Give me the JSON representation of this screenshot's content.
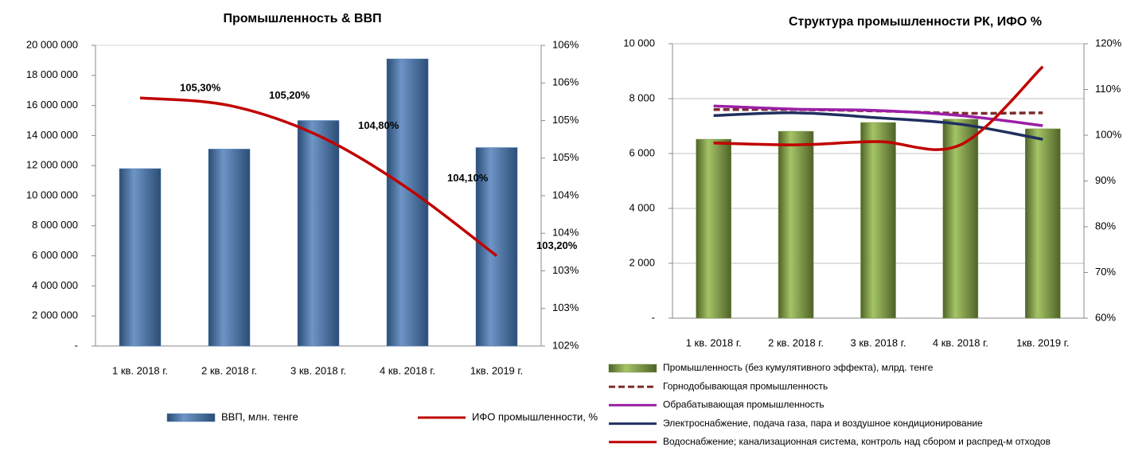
{
  "chart_data": [
    {
      "type": "combo",
      "title": "Промышленность & ВВП",
      "categories": [
        "1 кв. 2018 г.",
        "2 кв. 2018 г.",
        "3 кв. 2018 г.",
        "4 кв. 2018 г.",
        "1кв. 2019 г."
      ],
      "ylim": [
        0,
        20000000
      ],
      "yticks": [
        {
          "value": 0,
          "label": "-"
        },
        {
          "value": 2000000,
          "label": "2 000 000"
        },
        {
          "value": 4000000,
          "label": "4 000 000"
        },
        {
          "value": 6000000,
          "label": "6 000 000"
        },
        {
          "value": 8000000,
          "label": "8 000 000"
        },
        {
          "value": 10000000,
          "label": "10 000 000"
        },
        {
          "value": 12000000,
          "label": "12 000 000"
        },
        {
          "value": 14000000,
          "label": "14 000 000"
        },
        {
          "value": 16000000,
          "label": "16 000 000"
        },
        {
          "value": 18000000,
          "label": "18 000 000"
        },
        {
          "value": 20000000,
          "label": "20 000 000"
        }
      ],
      "y2lim": [
        102,
        106
      ],
      "y2ticks": [
        {
          "value": 102,
          "label": "102%"
        },
        {
          "value": 102.5,
          "label": "103%"
        },
        {
          "value": 103,
          "label": "103%"
        },
        {
          "value": 103.5,
          "label": "104%"
        },
        {
          "value": 104,
          "label": "104%"
        },
        {
          "value": 104.5,
          "label": "105%"
        },
        {
          "value": 105,
          "label": "105%"
        },
        {
          "value": 105.5,
          "label": "106%"
        },
        {
          "value": 106,
          "label": "106%"
        }
      ],
      "grid": false,
      "series": [
        {
          "name": "ВВП, млн. тенге",
          "type": "bar",
          "color": "#4f81bd",
          "values": [
            11800000,
            13100000,
            15000000,
            19100000,
            13200000
          ]
        },
        {
          "name": "ИФО промышленности, %",
          "type": "line",
          "axis": "y2",
          "color": "#c00000",
          "values": [
            105.3,
            105.2,
            104.8,
            104.1,
            103.2
          ],
          "value_labels": [
            "105,30%",
            "105,20%",
            "104,80%",
            "104,10%",
            "103,20%"
          ]
        }
      ]
    },
    {
      "type": "combo",
      "title": "Структура промышленности РК, ИФО %",
      "categories": [
        "1 кв. 2018 г.",
        "2 кв. 2018 г.",
        "3 кв. 2018 г.",
        "4 кв. 2018 г.",
        "1кв. 2019 г."
      ],
      "ylim": [
        0,
        10000
      ],
      "yticks": [
        {
          "value": 0,
          "label": "-"
        },
        {
          "value": 2000,
          "label": "2 000"
        },
        {
          "value": 4000,
          "label": "4 000"
        },
        {
          "value": 6000,
          "label": "6 000"
        },
        {
          "value": 8000,
          "label": "8 000"
        },
        {
          "value": 10000,
          "label": "10 000"
        }
      ],
      "y2lim": [
        60,
        120
      ],
      "y2ticks": [
        {
          "value": 60,
          "label": "60%"
        },
        {
          "value": 70,
          "label": "70%"
        },
        {
          "value": 80,
          "label": "80%"
        },
        {
          "value": 90,
          "label": "90%"
        },
        {
          "value": 100,
          "label": "100%"
        },
        {
          "value": 110,
          "label": "110%"
        },
        {
          "value": 120,
          "label": "120%"
        }
      ],
      "grid": true,
      "series": [
        {
          "name": "Промышленность (без кумулятивного эффекта), млрд. тенге",
          "type": "bar",
          "color": "#77933c",
          "values": [
            6520,
            6810,
            7130,
            7250,
            6900
          ]
        },
        {
          "name": "Горнодобывающая промышленность",
          "type": "line",
          "dashed": true,
          "axis": "y2",
          "color": "#7b2c2c",
          "values": [
            105.6,
            105.6,
            105.3,
            104.8,
            104.9
          ]
        },
        {
          "name": "Обрабатывающая промышленность",
          "type": "line",
          "axis": "y2",
          "color": "#9b1fa6",
          "values": [
            106.4,
            105.7,
            105.4,
            104.3,
            102.1
          ]
        },
        {
          "name": "Электроснабжение, подача газа, пара и воздушное кондиционирование",
          "type": "line",
          "axis": "y2",
          "color": "#1f2f5f",
          "values": [
            104.3,
            104.9,
            103.8,
            102.4,
            99.1
          ]
        },
        {
          "name": "Водоснабжение; канализационная система, контроль над сбором и распред-м отходов",
          "type": "line",
          "axis": "y2",
          "color": "#c00000",
          "values": [
            98.3,
            97.9,
            98.6,
            97.9,
            115
          ]
        }
      ]
    }
  ]
}
